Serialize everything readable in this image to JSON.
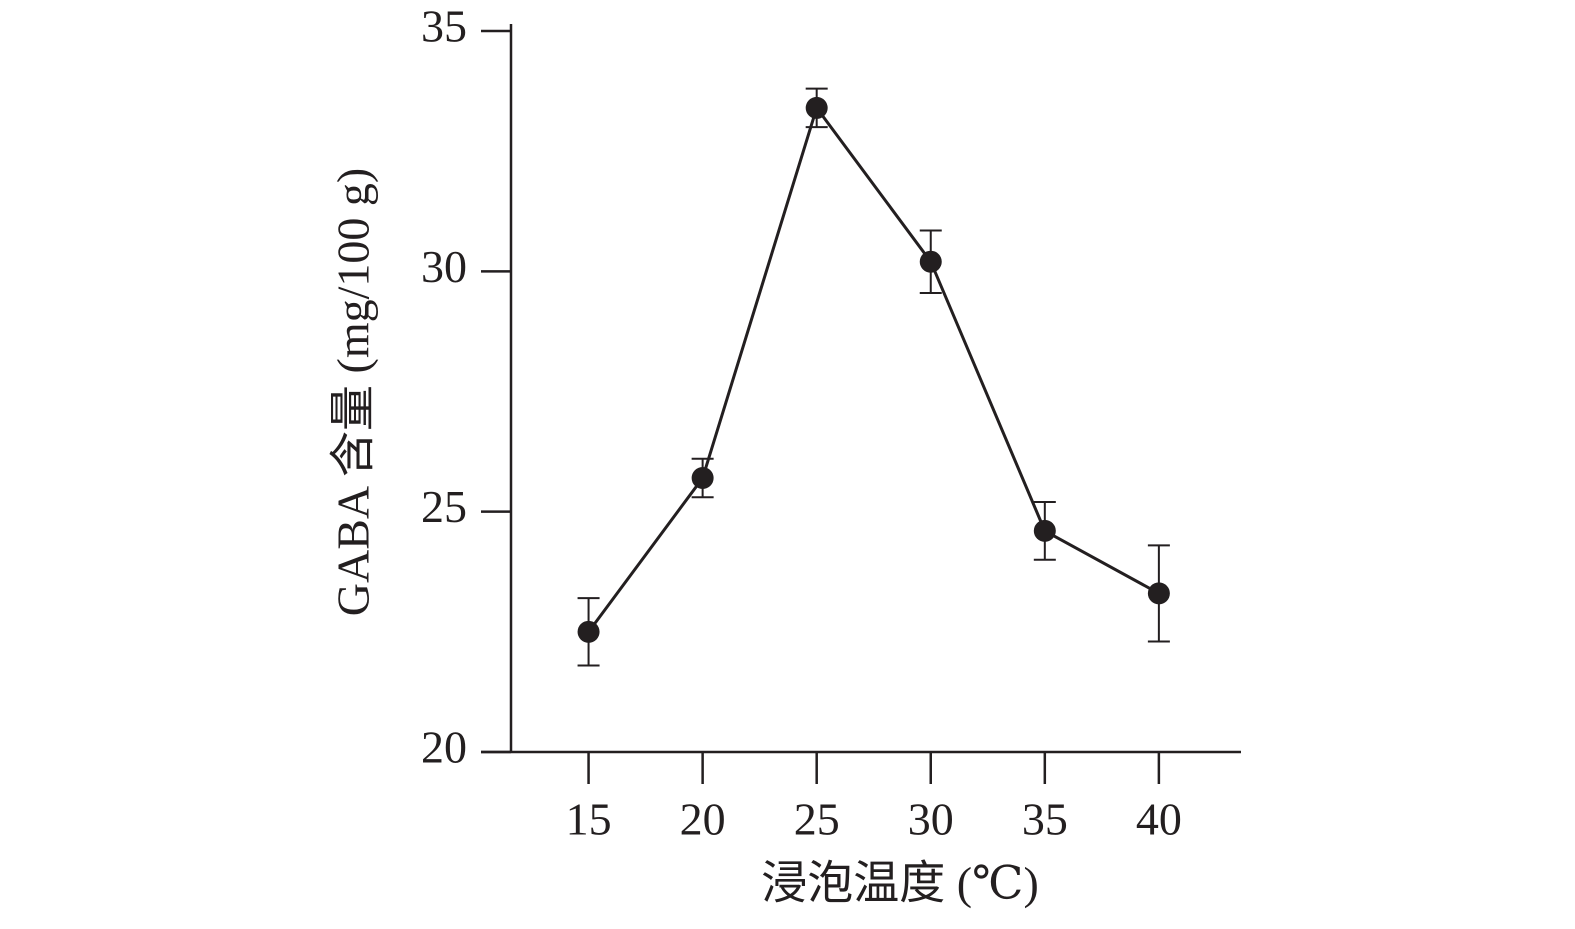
{
  "chart_data": {
    "type": "line",
    "x_label": "浸泡温度 (℃)",
    "y_label": "GABA 含量 (mg/100 g)",
    "x": [
      15,
      20,
      25,
      30,
      35,
      40
    ],
    "series": [
      {
        "color": "#231f20",
        "values": [
          22.5,
          25.7,
          33.4,
          30.2,
          24.6,
          23.3
        ],
        "errors": [
          0.7,
          0.4,
          0.4,
          0.65,
          0.6,
          1.0
        ]
      }
    ],
    "xlim": [
      11.6,
      43.6
    ],
    "xticks": [
      15,
      20,
      25,
      30,
      35,
      40
    ],
    "ylim": [
      20,
      35
    ],
    "yticks": [
      20,
      25,
      30,
      35
    ]
  }
}
